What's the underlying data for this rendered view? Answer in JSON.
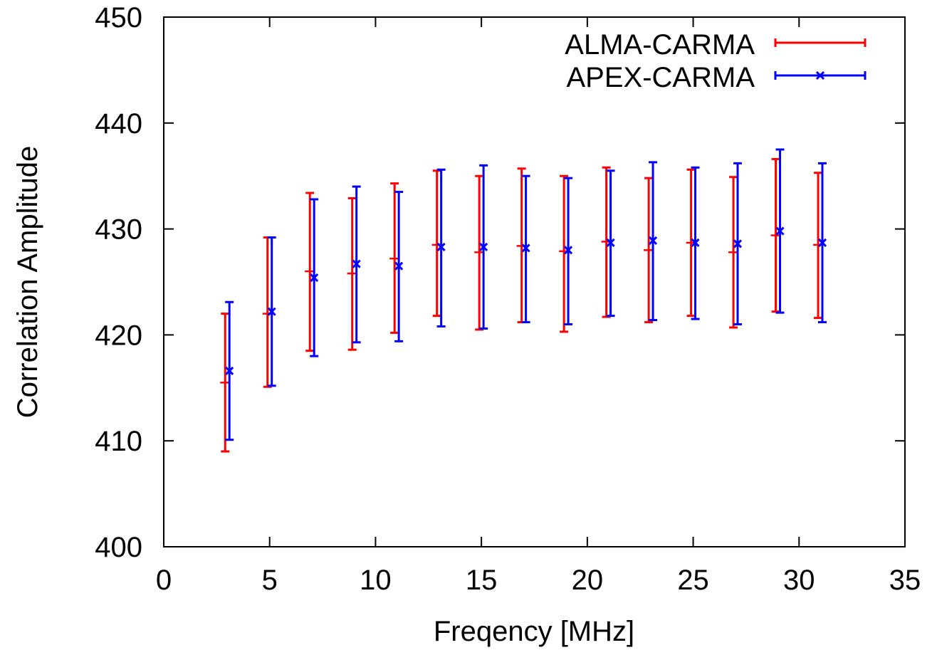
{
  "chart_data": {
    "type": "scatter",
    "xlabel": "Freqency [MHz]",
    "ylabel": "Correlation Amplitude",
    "xlim": [
      0,
      35
    ],
    "ylim": [
      400,
      450
    ],
    "xticks": [
      "0",
      "5",
      "10",
      "15",
      "20",
      "25",
      "30",
      "35"
    ],
    "yticks": [
      "400",
      "410",
      "420",
      "430",
      "440",
      "450"
    ],
    "legend_position": "top-right",
    "grid": false,
    "series": [
      {
        "name": "ALMA-CARMA",
        "color": "#ff0000",
        "marker": "plus",
        "points": [
          {
            "x": 2.9,
            "y": 415.5,
            "low": 409.0,
            "high": 422.0
          },
          {
            "x": 4.9,
            "y": 422.0,
            "low": 415.1,
            "high": 429.2
          },
          {
            "x": 6.9,
            "y": 426.0,
            "low": 418.5,
            "high": 433.4
          },
          {
            "x": 8.9,
            "y": 425.8,
            "low": 418.6,
            "high": 432.9
          },
          {
            "x": 10.9,
            "y": 427.2,
            "low": 420.2,
            "high": 434.3
          },
          {
            "x": 12.9,
            "y": 428.5,
            "low": 421.8,
            "high": 435.5
          },
          {
            "x": 14.9,
            "y": 427.8,
            "low": 420.5,
            "high": 435.0
          },
          {
            "x": 16.9,
            "y": 428.4,
            "low": 421.2,
            "high": 435.7
          },
          {
            "x": 18.9,
            "y": 427.9,
            "low": 420.3,
            "high": 435.0
          },
          {
            "x": 20.9,
            "y": 428.8,
            "low": 421.7,
            "high": 435.8
          },
          {
            "x": 22.9,
            "y": 428.0,
            "low": 421.2,
            "high": 434.8
          },
          {
            "x": 24.9,
            "y": 428.7,
            "low": 421.8,
            "high": 435.6
          },
          {
            "x": 26.9,
            "y": 427.8,
            "low": 420.7,
            "high": 434.9
          },
          {
            "x": 28.9,
            "y": 429.4,
            "low": 422.2,
            "high": 436.6
          },
          {
            "x": 30.9,
            "y": 428.5,
            "low": 421.6,
            "high": 435.3
          }
        ]
      },
      {
        "name": "APEX-CARMA",
        "color": "#0000ff",
        "marker": "x",
        "points": [
          {
            "x": 3.1,
            "y": 416.6,
            "low": 410.1,
            "high": 423.1
          },
          {
            "x": 5.1,
            "y": 422.2,
            "low": 415.2,
            "high": 429.2
          },
          {
            "x": 7.1,
            "y": 425.4,
            "low": 418.0,
            "high": 432.8
          },
          {
            "x": 9.1,
            "y": 426.7,
            "low": 419.3,
            "high": 434.0
          },
          {
            "x": 11.1,
            "y": 426.5,
            "low": 419.4,
            "high": 433.5
          },
          {
            "x": 13.1,
            "y": 428.3,
            "low": 420.8,
            "high": 435.6
          },
          {
            "x": 15.1,
            "y": 428.3,
            "low": 420.6,
            "high": 436.0
          },
          {
            "x": 17.1,
            "y": 428.2,
            "low": 421.2,
            "high": 435.0
          },
          {
            "x": 19.1,
            "y": 428.0,
            "low": 421.0,
            "high": 434.8
          },
          {
            "x": 21.1,
            "y": 428.7,
            "low": 421.8,
            "high": 435.5
          },
          {
            "x": 23.1,
            "y": 428.9,
            "low": 421.4,
            "high": 436.3
          },
          {
            "x": 25.1,
            "y": 428.7,
            "low": 421.5,
            "high": 435.8
          },
          {
            "x": 27.1,
            "y": 428.6,
            "low": 421.0,
            "high": 436.2
          },
          {
            "x": 29.1,
            "y": 429.8,
            "low": 422.1,
            "high": 437.5
          },
          {
            "x": 31.1,
            "y": 428.7,
            "low": 421.2,
            "high": 436.2
          }
        ]
      }
    ]
  }
}
